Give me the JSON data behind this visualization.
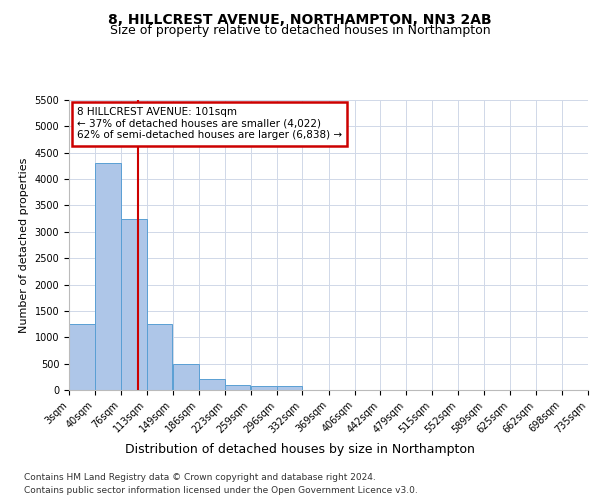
{
  "title_line1": "8, HILLCREST AVENUE, NORTHAMPTON, NN3 2AB",
  "title_line2": "Size of property relative to detached houses in Northampton",
  "xlabel": "Distribution of detached houses by size in Northampton",
  "ylabel": "Number of detached properties",
  "footnote1": "Contains HM Land Registry data © Crown copyright and database right 2024.",
  "footnote2": "Contains public sector information licensed under the Open Government Licence v3.0.",
  "annotation_title": "8 HILLCREST AVENUE: 101sqm",
  "annotation_line1": "← 37% of detached houses are smaller (4,022)",
  "annotation_line2": "62% of semi-detached houses are larger (6,838) →",
  "property_size_sqm": 101,
  "bin_edges": [
    3,
    40,
    76,
    113,
    149,
    186,
    223,
    259,
    296,
    332,
    369,
    406,
    442,
    479,
    515,
    552,
    589,
    625,
    662,
    698,
    735
  ],
  "bin_counts": [
    1250,
    4300,
    3250,
    1250,
    500,
    200,
    100,
    75,
    75,
    0,
    0,
    0,
    0,
    0,
    0,
    0,
    0,
    0,
    0,
    0
  ],
  "bar_color": "#aec6e8",
  "bar_edge_color": "#5a9fd4",
  "vline_color": "#cc0000",
  "vline_x": 101,
  "annotation_box_color": "#cc0000",
  "grid_color": "#d0d8e8",
  "ylim": [
    0,
    5500
  ],
  "yticks": [
    0,
    500,
    1000,
    1500,
    2000,
    2500,
    3000,
    3500,
    4000,
    4500,
    5000,
    5500
  ],
  "background_color": "#ffffff",
  "title1_fontsize": 10,
  "title2_fontsize": 9,
  "ylabel_fontsize": 8,
  "xlabel_fontsize": 9,
  "tick_fontsize": 7,
  "footnote_fontsize": 6.5
}
